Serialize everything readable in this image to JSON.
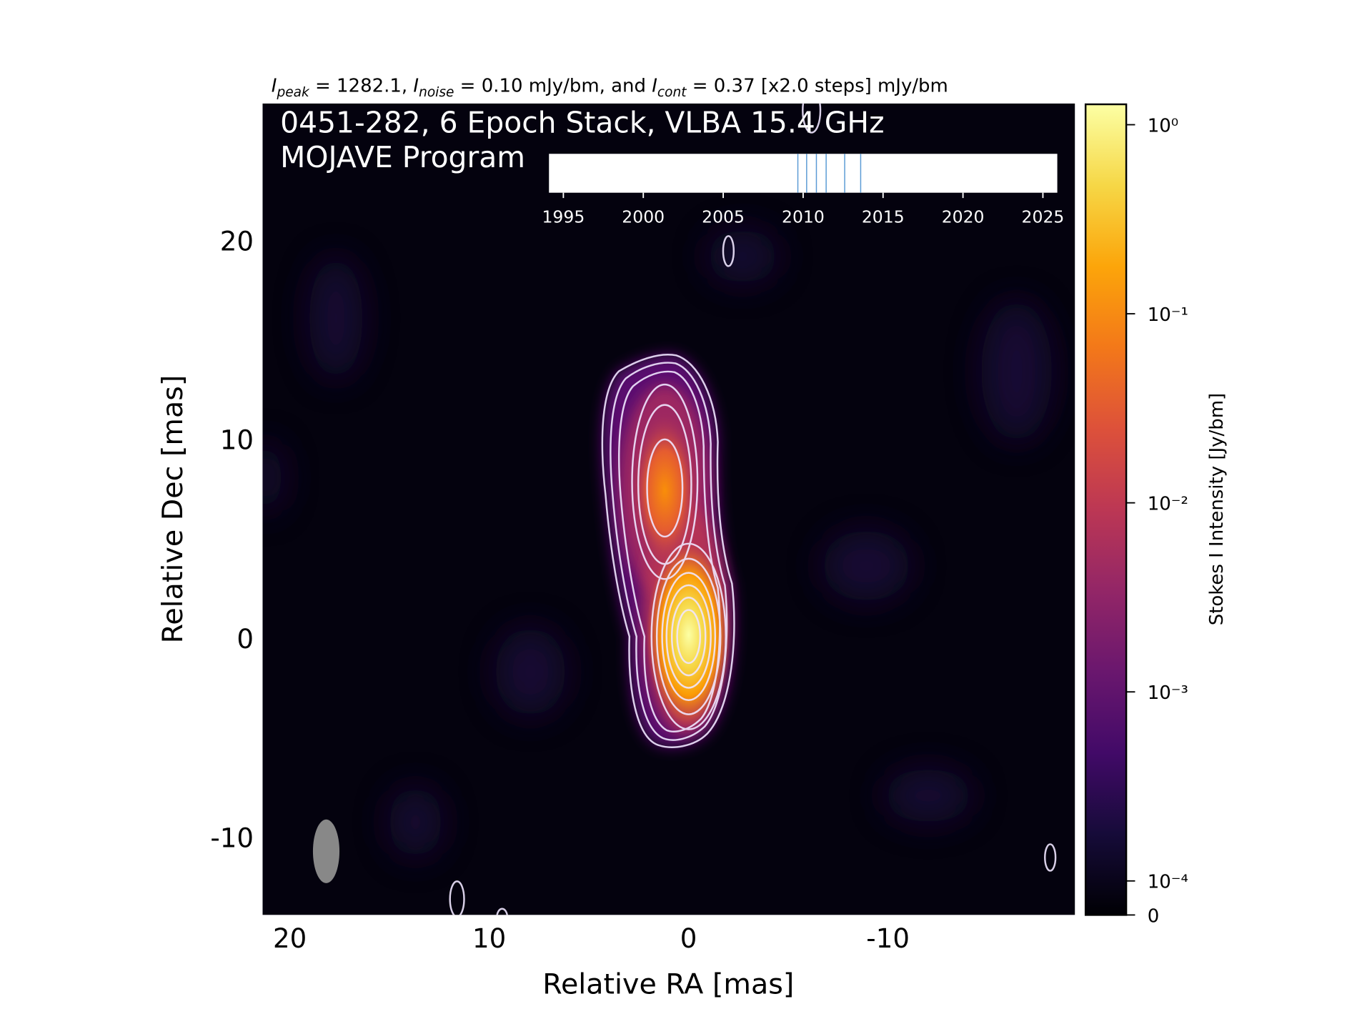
{
  "chart_data": {
    "type": "image",
    "title": [
      "I",
      "peak",
      " = 1282.1, ",
      "I",
      "noise",
      " = 0.10 mJy/bm, and ",
      "I",
      "cont",
      " = 0.37 [x2.0 steps] mJy/bm"
    ],
    "annotations": [
      "0451-282, 6 Epoch Stack, VLBA 15.4 GHz",
      "MOJAVE Program"
    ],
    "xlabel": "Relative RA [mas]",
    "ylabel": "Relative Dec [mas]",
    "xlim": [
      21.37,
      -19.38
    ],
    "ylim": [
      -13.9,
      26.9
    ],
    "xticks": [
      20,
      10,
      0,
      -10
    ],
    "yticks": [
      20,
      10,
      0,
      -10
    ],
    "colorbar": {
      "label": "Stokes I Intensity [Jy/bm]",
      "colormap": "inferno",
      "scale": "symlog",
      "clim": [
        0,
        1.2821
      ],
      "ticks": [
        {
          "value": 1,
          "label": "10⁰"
        },
        {
          "value": 0.1,
          "label": "10⁻¹"
        },
        {
          "value": 0.01,
          "label": "10⁻²"
        },
        {
          "value": 0.001,
          "label": "10⁻³"
        },
        {
          "value": 0.0001,
          "label": "10⁻⁴"
        },
        0
      ]
    },
    "epochs": {
      "xlim": [
        1994.1,
        2025.9
      ],
      "xticks": [
        1995,
        2000,
        2005,
        2010,
        2015,
        2020,
        2025
      ],
      "values": [
        2009.67,
        2010.22,
        2010.83,
        2011.44,
        2012.6,
        2013.6
      ],
      "color": "#5b9bd5"
    }
  }
}
